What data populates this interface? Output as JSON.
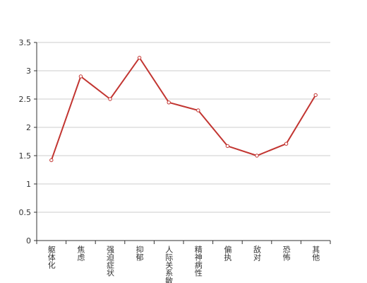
{
  "chart_data": {
    "type": "line",
    "categories": [
      "躯体化",
      "焦虑",
      "强迫症状",
      "抑郁",
      "人际关系敏感",
      "精神病性",
      "偏执",
      "敌对",
      "恐怖",
      "其他"
    ],
    "values": [
      1.42,
      2.9,
      2.5,
      3.23,
      2.44,
      2.3,
      1.67,
      1.5,
      1.71,
      2.57
    ],
    "color": "#c23531",
    "ylim": [
      0,
      3.5
    ],
    "yticks": [
      0,
      0.5,
      1,
      1.5,
      2,
      2.5,
      3,
      3.5
    ],
    "grid": true
  }
}
